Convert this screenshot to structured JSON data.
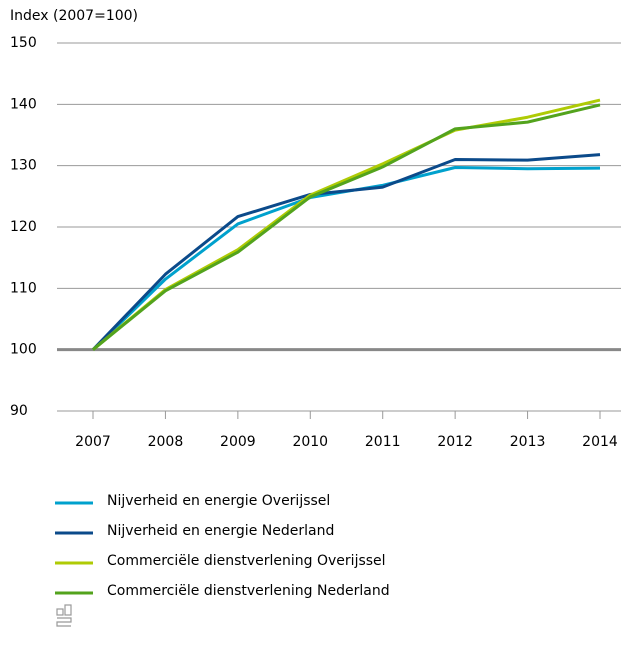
{
  "chart_data": {
    "type": "line",
    "y_axis_label": "Index (2007=100)",
    "categories": [
      "2007",
      "2008",
      "2009",
      "2010",
      "2011",
      "2012",
      "2013",
      "2014"
    ],
    "series": [
      {
        "name": "Nijverheid en energie Overijssel",
        "color": "#00a1cd",
        "values": [
          100,
          111.5,
          120.5,
          124.8,
          126.8,
          129.7,
          129.5,
          129.6
        ]
      },
      {
        "name": "Nijverheid en energie Nederland",
        "color": "#0b4a8a",
        "values": [
          100,
          112.3,
          121.7,
          125.3,
          126.5,
          131.0,
          130.9,
          131.8
        ]
      },
      {
        "name": "Commerciële dienstverlening Overijssel",
        "color": "#afcb05",
        "values": [
          100,
          109.8,
          116.3,
          125.2,
          130.3,
          135.8,
          137.9,
          140.7
        ]
      },
      {
        "name": "Commerciële dienstverlening Nederland",
        "color": "#53a31d",
        "values": [
          100,
          109.6,
          115.9,
          124.9,
          129.8,
          136.0,
          137.1,
          139.9
        ]
      }
    ],
    "ylim": [
      90,
      150
    ],
    "yticks": [
      90,
      100,
      110,
      120,
      130,
      140,
      150
    ],
    "baseline": 100,
    "grid": true
  }
}
